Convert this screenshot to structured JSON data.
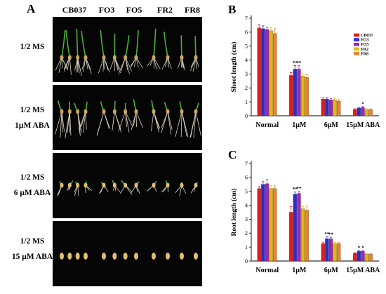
{
  "panel_a": {
    "letter": "A",
    "genotypes": [
      "CB037",
      "FO3",
      "FO5",
      "FR2",
      "FR8"
    ],
    "rows": [
      {
        "line1": "1/2 MS",
        "line2": ""
      },
      {
        "line1": "1/2 MS",
        "line2": "1μM ABA"
      },
      {
        "line1": "1/2 MS",
        "line2": "6 μM ABA"
      },
      {
        "line1": "1/2 MS",
        "line2": "15 μM ABA"
      }
    ]
  },
  "colors": {
    "CB037": "#e41a1c",
    "FO3": "#2b2bd6",
    "FO5": "#9c27b0",
    "FR2": "#e6b800",
    "FR8": "#f08030"
  },
  "chart_data": [
    {
      "type": "bar",
      "panel": "B",
      "ylabel": "Shoot length (cm)",
      "ylim": [
        0,
        7
      ],
      "yticks": [
        0,
        1,
        2,
        3,
        4,
        5,
        6,
        7
      ],
      "categories": [
        "Normal",
        "1μM",
        "6μM",
        "15μM ABA"
      ],
      "legend_position": "top-right",
      "series": [
        {
          "name": "CB037",
          "values": [
            6.3,
            2.9,
            1.2,
            0.45
          ],
          "errors": [
            0.25,
            0.2,
            0.1,
            0.05
          ]
        },
        {
          "name": "FO3",
          "values": [
            6.25,
            3.35,
            1.2,
            0.55
          ],
          "errors": [
            0.2,
            0.25,
            0.1,
            0.05
          ]
        },
        {
          "name": "FO5",
          "values": [
            6.2,
            3.35,
            1.15,
            0.6
          ],
          "errors": [
            0.15,
            0.25,
            0.1,
            0.06
          ]
        },
        {
          "name": "FR2",
          "values": [
            6.1,
            2.85,
            1.15,
            0.45
          ],
          "errors": [
            0.25,
            0.15,
            0.1,
            0.05
          ]
        },
        {
          "name": "FR8",
          "values": [
            5.9,
            2.75,
            1.05,
            0.45
          ],
          "errors": [
            0.35,
            0.2,
            0.15,
            0.05
          ]
        }
      ],
      "annotations": [
        {
          "category": 1,
          "series": 1,
          "text": "**"
        },
        {
          "category": 1,
          "series": 2,
          "text": "**"
        },
        {
          "category": 3,
          "series": 2,
          "text": "*"
        }
      ]
    },
    {
      "type": "bar",
      "panel": "C",
      "ylabel": "Root length (cm)",
      "ylim": [
        0,
        7
      ],
      "yticks": [
        0,
        1,
        2,
        3,
        4,
        5,
        6,
        7
      ],
      "categories": [
        "Normal",
        "1μM",
        "6μM",
        "15μM ABA"
      ],
      "series": [
        {
          "name": "CB037",
          "values": [
            5.2,
            3.5,
            1.25,
            0.55
          ],
          "errors": [
            0.15,
            0.4,
            0.1,
            0.05
          ]
        },
        {
          "name": "FO3",
          "values": [
            5.5,
            4.8,
            1.6,
            0.7
          ],
          "errors": [
            0.2,
            0.15,
            0.15,
            0.06
          ]
        },
        {
          "name": "FO5",
          "values": [
            5.55,
            4.85,
            1.6,
            0.7
          ],
          "errors": [
            0.3,
            0.15,
            0.1,
            0.06
          ]
        },
        {
          "name": "FR2",
          "values": [
            5.2,
            3.75,
            1.25,
            0.5
          ],
          "errors": [
            0.2,
            0.15,
            0.1,
            0.05
          ]
        },
        {
          "name": "FR8",
          "values": [
            5.2,
            3.65,
            1.25,
            0.5
          ],
          "errors": [
            0.2,
            0.3,
            0.1,
            0.05
          ]
        }
      ],
      "annotations": [
        {
          "category": 1,
          "series": 1,
          "text": "**"
        },
        {
          "category": 1,
          "series": 2,
          "text": "**"
        },
        {
          "category": 2,
          "series": 1,
          "text": "**"
        },
        {
          "category": 2,
          "series": 2,
          "text": "**"
        },
        {
          "category": 3,
          "series": 1,
          "text": "*"
        },
        {
          "category": 3,
          "series": 2,
          "text": "*"
        }
      ]
    }
  ]
}
